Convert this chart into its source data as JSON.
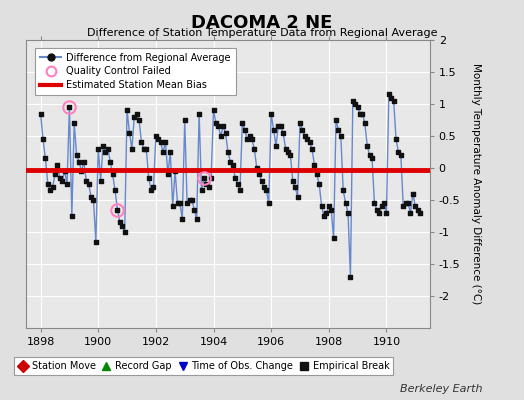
{
  "title": "DACOMA 2 NE",
  "subtitle": "Difference of Station Temperature Data from Regional Average",
  "ylabel": "Monthly Temperature Anomaly Difference (°C)",
  "xlabel_note": "Berkeley Earth",
  "xlim": [
    1897.5,
    1911.5
  ],
  "ylim": [
    -2.5,
    2.0
  ],
  "yticks": [
    -2.0,
    -1.5,
    -1.0,
    -0.5,
    0.0,
    0.5,
    1.0,
    1.5,
    2.0
  ],
  "ytick_labels": [
    "-2",
    "-1.5",
    "-1",
    "-0.5",
    "0",
    "0.5",
    "1",
    "1.5",
    "2"
  ],
  "xticks": [
    1898,
    1900,
    1902,
    1904,
    1906,
    1908,
    1910
  ],
  "bias_value": -0.03,
  "line_color": "#6688CC",
  "marker_color": "#111111",
  "bias_color": "#DD0000",
  "bg_color": "#E0E0E0",
  "fig_bg_color": "#D0D0D0",
  "plot_bg_color": "#E8E8E8",
  "grid_color": "#FFFFFF",
  "qc_fail_color": "#FF80C0",
  "data": [
    0.85,
    0.45,
    0.15,
    -0.25,
    -0.35,
    -0.3,
    -0.1,
    0.05,
    -0.15,
    -0.2,
    -0.05,
    -0.25,
    0.95,
    -0.75,
    0.7,
    0.2,
    0.1,
    -0.05,
    0.1,
    -0.2,
    -0.25,
    -0.45,
    -0.5,
    -1.15,
    0.3,
    -0.2,
    0.35,
    0.25,
    0.3,
    0.1,
    -0.1,
    -0.35,
    -0.65,
    -0.85,
    -0.9,
    -1.0,
    0.9,
    0.55,
    0.3,
    0.8,
    0.85,
    0.75,
    0.4,
    0.3,
    0.3,
    -0.15,
    -0.35,
    -0.3,
    0.5,
    0.45,
    0.4,
    0.25,
    0.4,
    -0.1,
    0.25,
    -0.6,
    -0.05,
    -0.55,
    -0.55,
    -0.8,
    0.75,
    -0.55,
    -0.5,
    -0.5,
    -0.65,
    -0.8,
    0.85,
    -0.35,
    -0.15,
    -0.25,
    -0.3,
    -0.15,
    0.9,
    0.7,
    0.65,
    0.5,
    0.65,
    0.55,
    0.25,
    0.1,
    0.05,
    -0.15,
    -0.25,
    -0.35,
    0.7,
    0.6,
    0.45,
    0.5,
    0.45,
    0.3,
    0.0,
    -0.1,
    -0.2,
    -0.3,
    -0.35,
    -0.55,
    0.85,
    0.6,
    0.35,
    0.65,
    0.65,
    0.55,
    0.3,
    0.25,
    0.2,
    -0.2,
    -0.3,
    -0.45,
    0.7,
    0.6,
    0.5,
    0.45,
    0.4,
    0.3,
    0.05,
    -0.1,
    -0.25,
    -0.6,
    -0.75,
    -0.7,
    -0.6,
    -0.65,
    -1.1,
    0.75,
    0.6,
    0.5,
    -0.35,
    -0.55,
    -0.7,
    -1.7,
    1.05,
    1.0,
    0.95,
    0.85,
    0.85,
    0.7,
    0.35,
    0.2,
    0.15,
    -0.55,
    -0.65,
    -0.7,
    -0.6,
    -0.55,
    -0.7,
    1.15,
    1.1,
    1.05,
    0.45,
    0.25,
    0.2,
    -0.6,
    -0.55,
    -0.55,
    -0.7,
    -0.4,
    -0.6,
    -0.65,
    -0.7
  ],
  "time_start": 1898.0,
  "time_step": 0.0833333,
  "qc_fail_indices": [
    12,
    32,
    68
  ],
  "legend1_items": [
    {
      "label": "Difference from Regional Average",
      "color": "#6688CC",
      "type": "line_marker"
    },
    {
      "label": "Quality Control Failed",
      "color": "#FF80C0",
      "type": "circle_open"
    },
    {
      "label": "Estimated Station Mean Bias",
      "color": "#DD0000",
      "type": "line"
    }
  ],
  "legend2_items": [
    {
      "label": "Station Move",
      "color": "#CC0000",
      "marker": "D"
    },
    {
      "label": "Record Gap",
      "color": "#008800",
      "marker": "^"
    },
    {
      "label": "Time of Obs. Change",
      "color": "#0000CC",
      "marker": "v"
    },
    {
      "label": "Empirical Break",
      "color": "#111111",
      "marker": "s"
    }
  ]
}
